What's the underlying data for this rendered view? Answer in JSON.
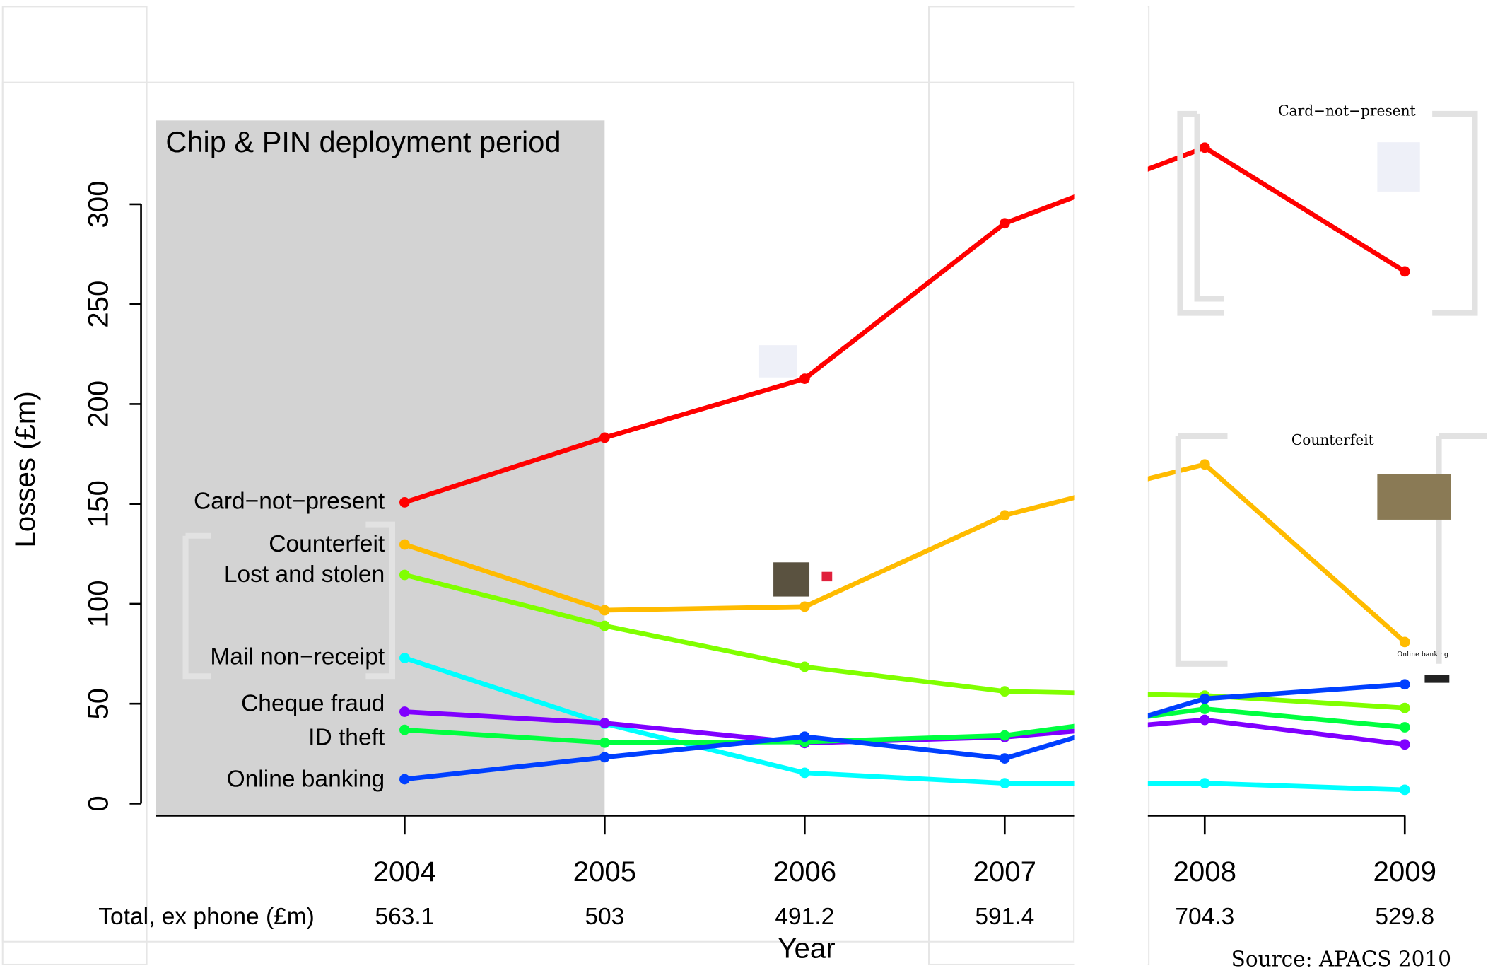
{
  "chart_data": {
    "type": "line",
    "annotation": "Chip & PIN deployment period",
    "xlabel": "Year",
    "ylabel": "Losses (£m)",
    "x": [
      2004,
      2005,
      2006,
      2007,
      2008,
      2009
    ],
    "xlim": [
      2004,
      2009
    ],
    "xticks": [
      2004,
      2005,
      2006,
      2007,
      2008,
      2009
    ],
    "ylim": [
      -6,
      342
    ],
    "yticks": [
      0,
      50,
      100,
      150,
      200,
      250,
      300
    ],
    "series": [
      {
        "name": "Card−not−present",
        "color": "#ff0000",
        "values": [
          150.8,
          183.2,
          212.7,
          290.5,
          328.4,
          266.4
        ]
      },
      {
        "name": "Counterfeit",
        "color": "#ffbb00",
        "values": [
          129.7,
          96.8,
          98.6,
          144.3,
          169.8,
          80.9
        ]
      },
      {
        "name": "Lost and stolen",
        "color": "#80ff00",
        "values": [
          114.5,
          89.0,
          68.5,
          56.2,
          54.1,
          47.9
        ]
      },
      {
        "name": "Mail non−receipt",
        "color": "#00ffff",
        "values": [
          72.9,
          40.0,
          15.4,
          10.2,
          10.2,
          6.9
        ]
      },
      {
        "name": "Cheque fraud",
        "color": "#8000ff",
        "values": [
          46.0,
          40.3,
          30.3,
          33.3,
          41.9,
          29.6
        ]
      },
      {
        "name": "ID theft",
        "color": "#00ff40",
        "values": [
          36.9,
          30.5,
          30.9,
          34.1,
          47.4,
          38.2
        ]
      },
      {
        "name": "Online banking",
        "color": "#0040ff",
        "values": [
          12.2,
          23.2,
          33.5,
          22.6,
          52.5,
          59.7
        ]
      }
    ],
    "totals": {
      "label": "Total, ex phone (£m)",
      "values": [
        563.1,
        503,
        491.2,
        591.4,
        704.3,
        529.8
      ]
    },
    "side_labels": [
      "Card−not−present",
      "Counterfeit",
      "Online banking"
    ],
    "source": "Source: APACS 2010"
  }
}
